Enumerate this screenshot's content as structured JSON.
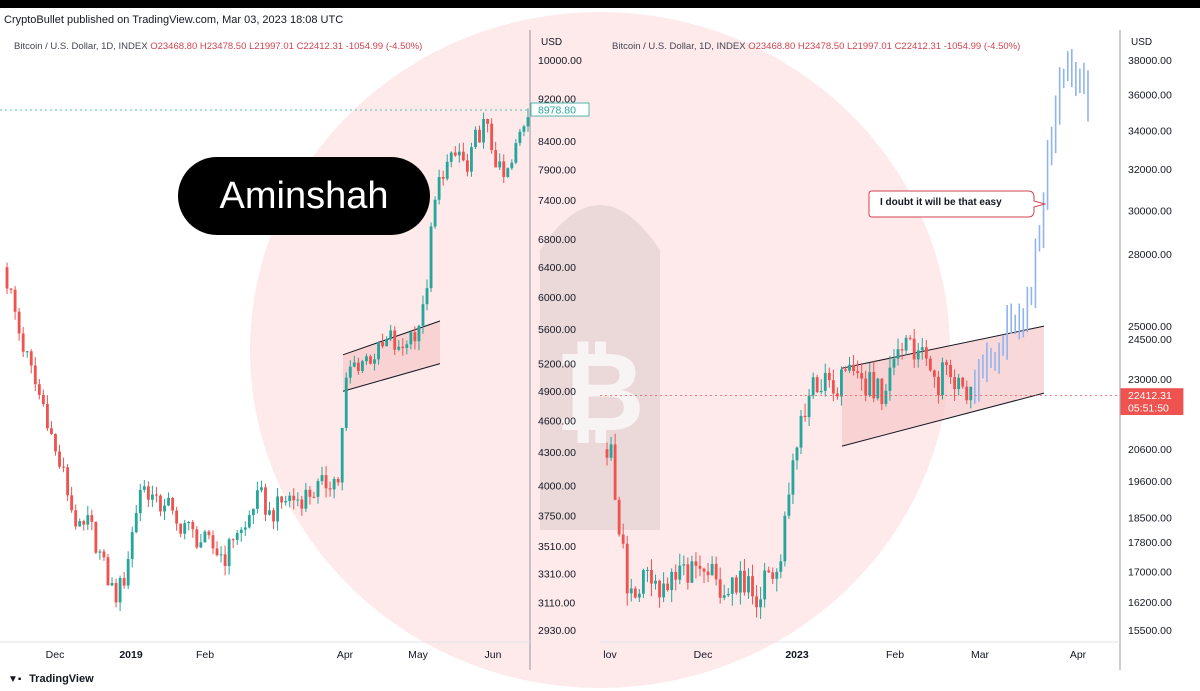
{
  "header": {
    "text": "CryptoBullet published on TradingView.com, Mar 03, 2023 18:08 UTC"
  },
  "banner": {
    "text": "Aminshah"
  },
  "footer": {
    "logo_icon": "tradingview-logo-icon",
    "text": "TradingView"
  },
  "colors": {
    "up": "#26a69a",
    "down": "#ef5350",
    "projection": "#90b4ef",
    "channel_fill": "#f7c7c9",
    "watermark": "#f23645"
  },
  "chart_data": [
    {
      "type": "candlestick",
      "symbol": "Bitcoin / U.S. Dollar, 1D, INDEX",
      "ohlc": {
        "O": "O23468.80",
        "H": "H23478.50",
        "L": "L21997.01",
        "C": "C22412.31",
        "change": "-1054.99 (-4.50%)"
      },
      "y_axis_label": "USD",
      "y_ticks": [
        "10000.00",
        "9200.00",
        "8400.00",
        "7900.00",
        "7400.00",
        "6800.00",
        "6400.00",
        "6000.00",
        "5600.00",
        "5200.00",
        "4900.00",
        "4600.00",
        "4300.00",
        "4000.00",
        "3750.00",
        "3510.00",
        "3310.00",
        "3110.00",
        "2930.00"
      ],
      "x_ticks": [
        "Dec",
        "2019",
        "Feb",
        "Apr",
        "May",
        "Jun"
      ],
      "price_tag": "8978.80",
      "close_path": [
        6400,
        6000,
        5500,
        5200,
        4900,
        4700,
        4300,
        4100,
        3800,
        3600,
        3700,
        3500,
        3300,
        3150,
        3250,
        3600,
        4000,
        3950,
        3800,
        3900,
        3650,
        3700,
        3600,
        3550,
        3520,
        3460,
        3430,
        3650,
        3600,
        3840,
        3900,
        3750,
        3820,
        3900,
        3880,
        3910,
        3950,
        3990,
        4050,
        4050,
        5100,
        5200,
        5250,
        5300,
        5350,
        5500,
        5300,
        5500,
        5600,
        5850,
        7200,
        7900,
        8000,
        8200,
        7800,
        8500,
        8700,
        8200,
        7700,
        7900,
        8500,
        8978.8
      ],
      "channel": {
        "lower": [
          4900,
          5200
        ],
        "upper": [
          5300,
          5700
        ],
        "x_range": [
          "Apr",
          "May"
        ]
      }
    },
    {
      "type": "candlestick",
      "symbol": "Bitcoin / U.S. Dollar, 1D, INDEX",
      "ohlc": {
        "O": "O23468.80",
        "H": "H23478.50",
        "L": "L21997.01",
        "C": "C22412.31",
        "change": "-1054.99 (-4.50%)"
      },
      "y_axis_label": "USD",
      "y_ticks": [
        "38000.00",
        "36000.00",
        "34000.00",
        "32000.00",
        "30000.00",
        "28000.00",
        "25000.00",
        "24500.00",
        "23000.00",
        "20600.00",
        "19600.00",
        "18500.00",
        "17800.00",
        "17000.00",
        "16200.00",
        "15500.00"
      ],
      "x_ticks": [
        "lov",
        "Dec",
        "2023",
        "Feb",
        "Mar",
        "Apr"
      ],
      "price_tag": "22412.31",
      "price_tag_time": "05:51:50",
      "close_path": [
        20600,
        20400,
        18000,
        16500,
        16200,
        16800,
        16600,
        16400,
        16600,
        16900,
        17000,
        16800,
        17100,
        16900,
        16700,
        16600,
        16800,
        16500,
        16400,
        16600,
        16900,
        17300,
        18600,
        20900,
        21400,
        22800,
        22900,
        23100,
        22600,
        23000,
        23200,
        22700,
        22900,
        22400,
        23100,
        23500,
        24200,
        24300,
        23800,
        23400,
        22900,
        23300,
        22600,
        22400,
        22900,
        23300,
        23800,
        24200,
        24600,
        24800,
        25000,
        26000,
        28500,
        32000,
        35000,
        37500,
        38000,
        37000,
        35500
      ],
      "projection_start_index": 44,
      "channel": {
        "lower": [
          20700,
          22500
        ],
        "upper": [
          23400,
          25000
        ],
        "x_range": [
          "Jan",
          "Mar"
        ]
      },
      "annotation": "I doubt it will be that easy"
    }
  ]
}
